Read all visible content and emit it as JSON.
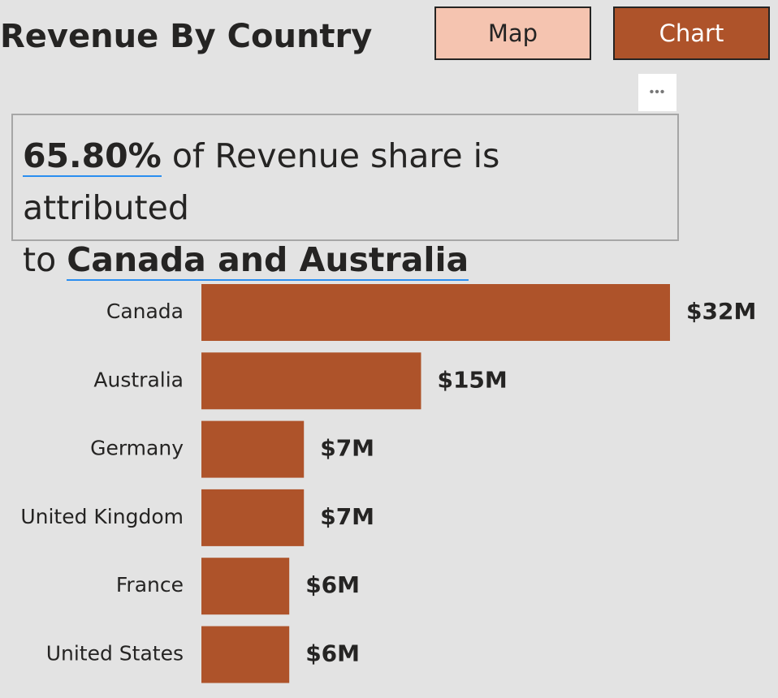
{
  "header": {
    "title": "Revenue By Country",
    "map_label": "Map",
    "chart_label": "Chart"
  },
  "more_options": {
    "icon": "more-options-icon",
    "glyph": "•••"
  },
  "narrative": {
    "percent": "65.80%",
    "text_1": " of Revenue share is attributed",
    "text_2": "to ",
    "countries": "Canada and Australia"
  },
  "colors": {
    "bar": "#ae532a",
    "map_button": "#f5c4b0",
    "chart_button": "#ae532a",
    "highlight_underline": "#2b8ef0",
    "background": "#e3e3e3"
  },
  "chart_data": {
    "type": "bar",
    "orientation": "horizontal",
    "categories": [
      "Canada",
      "Australia",
      "Germany",
      "United Kingdom",
      "France",
      "United States"
    ],
    "values": [
      32,
      15,
      7,
      7,
      6,
      6
    ],
    "value_labels": [
      "$32M",
      "$15M",
      "$7M",
      "$7M",
      "$6M",
      "$6M"
    ],
    "unit": "$M",
    "title": "",
    "xlabel": "",
    "ylabel": "",
    "grid": false,
    "legend": "none"
  }
}
